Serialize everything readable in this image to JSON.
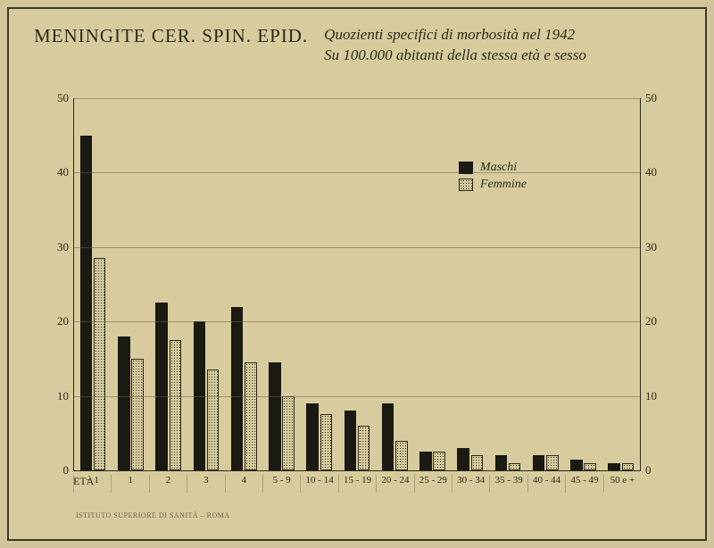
{
  "header": {
    "title_left": "MENINGITE CER. SPIN. EPID.",
    "title_right_line1": "Quozienti specifici di morbosità nel 1942",
    "title_right_line2": "Su 100.000 abitanti della stessa età e sesso"
  },
  "chart": {
    "type": "bar",
    "ylim": [
      0,
      50
    ],
    "ytick_step": 10,
    "y_ticks": [
      0,
      10,
      20,
      30,
      40,
      50
    ],
    "x_axis_label": "ETÀ",
    "categories": [
      "− 1",
      "1",
      "2",
      "3",
      "4",
      "5 - 9",
      "10 - 14",
      "15 - 19",
      "20 - 24",
      "25 - 29",
      "30 - 34",
      "35 - 39",
      "40 - 44",
      "45 - 49",
      "50 e +"
    ],
    "series": [
      {
        "name": "Maschi",
        "key": "m",
        "values": [
          45,
          18,
          22.5,
          20,
          22,
          14.5,
          9,
          8,
          9,
          2.5,
          3,
          2,
          2,
          1.5,
          1
        ]
      },
      {
        "name": "Femmine",
        "key": "f",
        "values": [
          28.5,
          15,
          17.5,
          13.5,
          14.5,
          10,
          7.5,
          6,
          4,
          2.5,
          2,
          1,
          2,
          1,
          1
        ]
      }
    ],
    "bar_width_ratio": 0.32,
    "bar_gap_ratio": 0.04,
    "colors": {
      "background": "#d8cc9e",
      "frame": "#3a3a2a",
      "axis": "#2a2a1a",
      "grid": "#6b6450",
      "male_fill": "#1a1a12",
      "female_fill": "#d8cc9e",
      "female_dot": "#2a2a1a",
      "text": "#2a2a1a"
    },
    "legend": {
      "items": [
        {
          "key": "m",
          "label": "Maschi"
        },
        {
          "key": "f",
          "label": "Femmine"
        }
      ]
    },
    "font": {
      "title_left_size": 21,
      "title_right_size": 17,
      "tick_size": 13,
      "xlabel_size": 11,
      "legend_size": 14
    }
  },
  "footnote": "ISTITUTO SUPERIORE DI SANITÀ – ROMA"
}
